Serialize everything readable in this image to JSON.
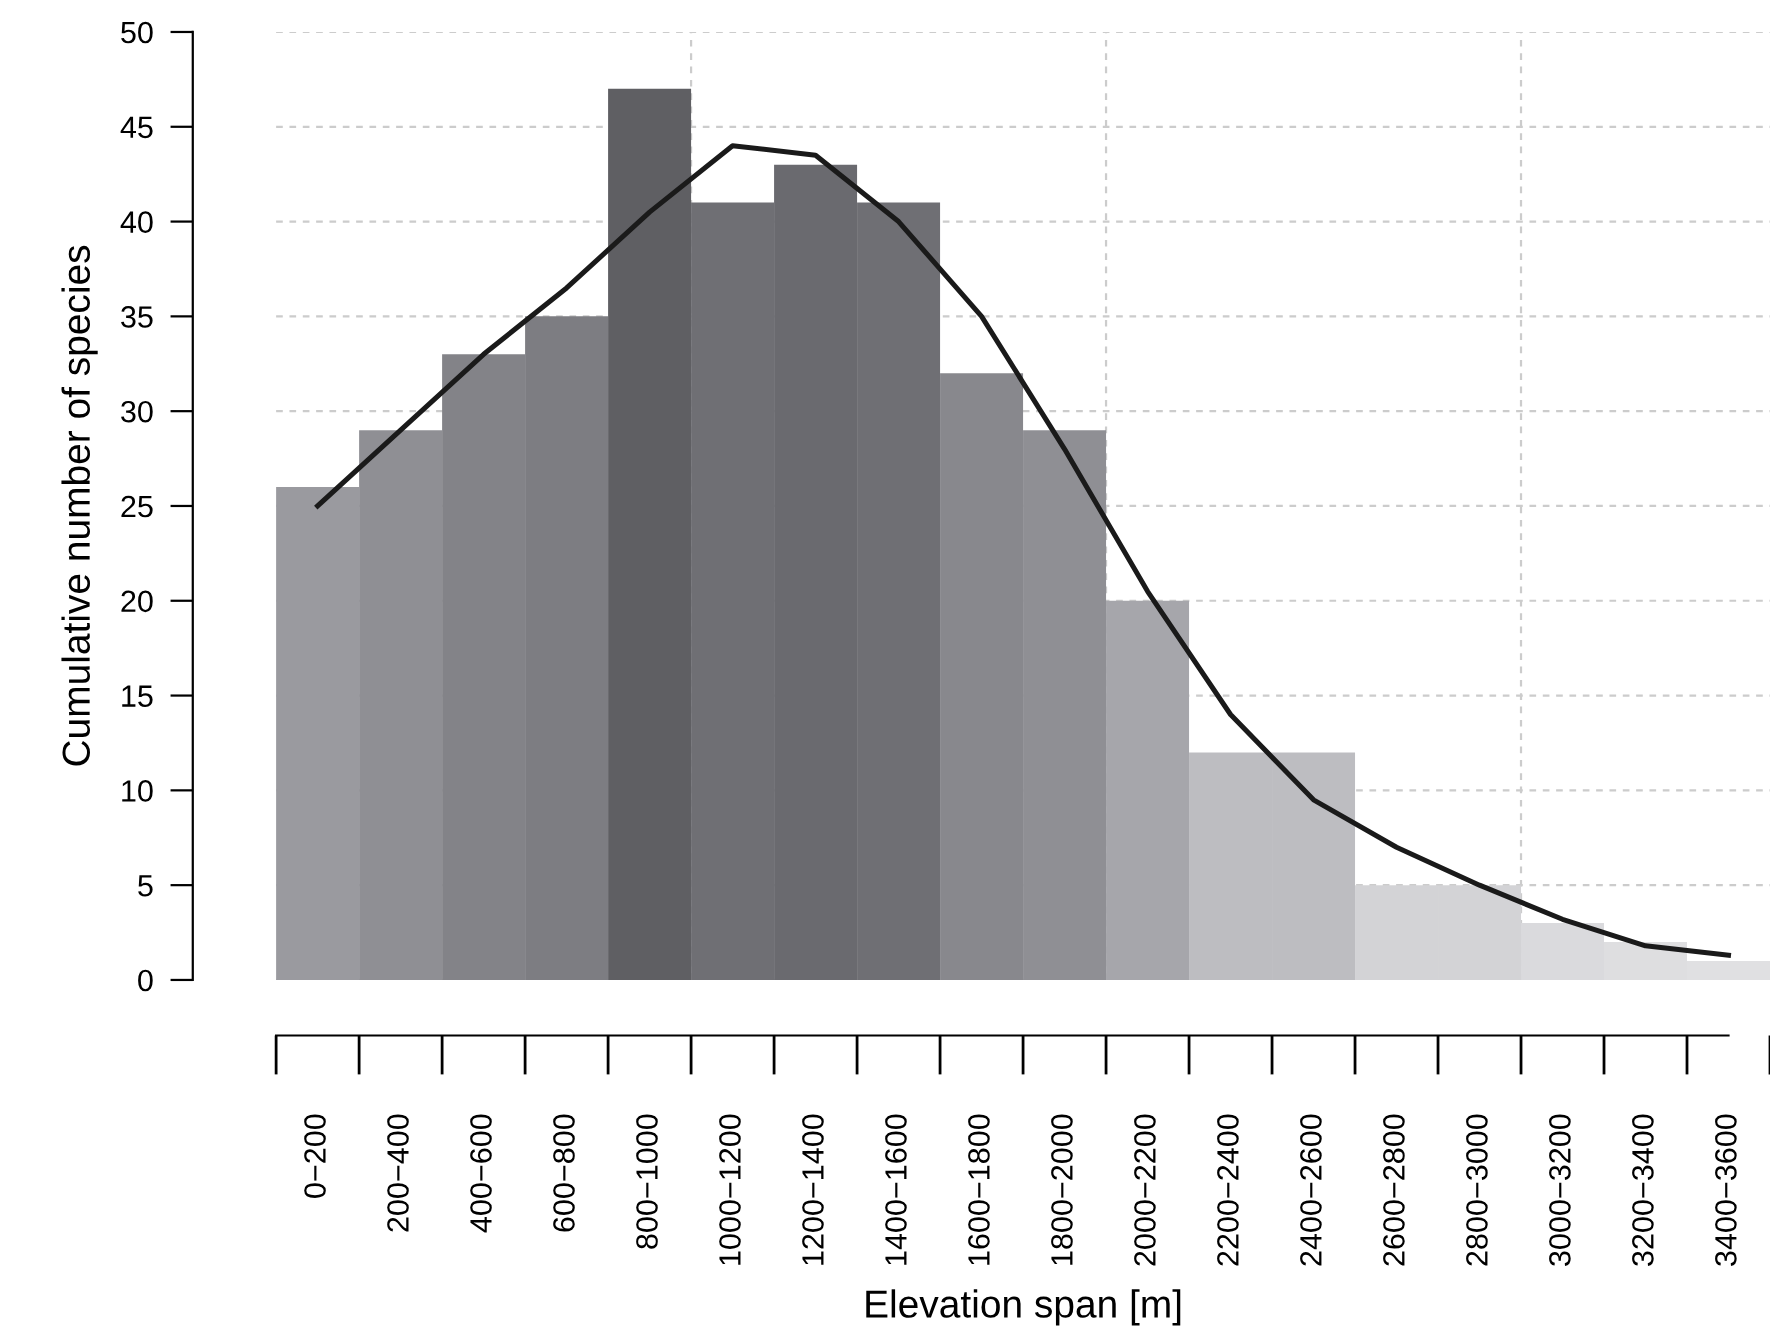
{
  "chart_data": {
    "type": "bar",
    "xlabel": "Elevation span [m]",
    "ylabel": "Cumulative number of species",
    "categories": [
      "0−200",
      "200−400",
      "400−600",
      "600−800",
      "800−1000",
      "1000−1200",
      "1200−1400",
      "1400−1600",
      "1600−1800",
      "1800−2000",
      "2000−2200",
      "2200−2400",
      "2400−2600",
      "2600−2800",
      "2800−3000",
      "3000−3200",
      "3200−3400",
      "3400−3600"
    ],
    "series": [
      {
        "values": [
          26,
          29,
          33,
          35,
          47,
          41,
          43,
          41,
          32,
          29,
          20,
          12,
          12,
          5,
          5,
          3,
          2,
          1
        ],
        "colors": [
          "#9a9a9f",
          "#8f8f94",
          "#838388",
          "#7d7d82",
          "#5f5f63",
          "#6f6f74",
          "#6a6a6f",
          "#6f6f74",
          "#88888d",
          "#8f8f94",
          "#a6a6ab",
          "#bdbdc1",
          "#bdbdc1",
          "#d3d3d6",
          "#d3d3d6",
          "#dadadd",
          "#dedee0",
          "#e0e0e2"
        ]
      },
      {
        "type": "line",
        "color": "#1a1a1a",
        "x": [
          "0−200",
          "200−400",
          "400−600",
          "600−800",
          "800−1000",
          "1000−1200",
          "1200−1400",
          "1400−1600",
          "1600−1800",
          "1800−2000",
          "2000−2200",
          "2200−2400",
          "2400−2600",
          "2600−2800",
          "2800−3000",
          "3000−3200",
          "3200−3400",
          "3400−3600"
        ],
        "values": [
          25,
          29,
          33,
          36.5,
          40.5,
          44,
          43.5,
          40,
          35,
          28,
          20.5,
          14,
          9.5,
          7,
          5,
          3.2,
          1.8,
          1.3
        ]
      }
    ],
    "ylim": [
      0,
      50
    ],
    "yticks": [
      0,
      5,
      10,
      15,
      20,
      25,
      30,
      35,
      40,
      45,
      50
    ],
    "grid": true
  }
}
